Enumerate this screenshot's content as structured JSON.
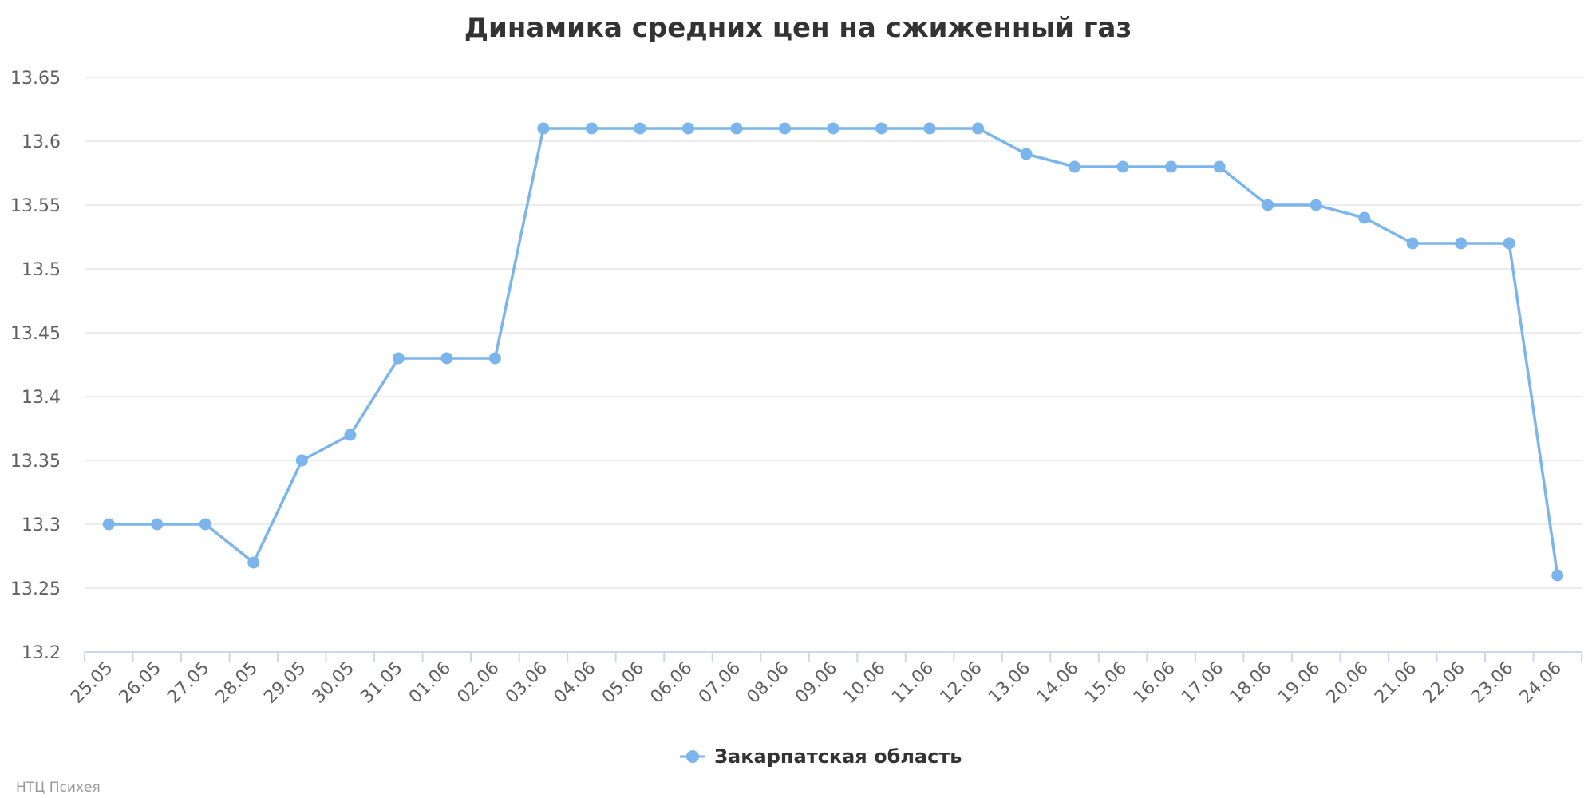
{
  "chart_data": {
    "type": "line",
    "title": "Динамика средних цен на сжиженный газ",
    "categories": [
      "25.05",
      "26.05",
      "27.05",
      "28.05",
      "29.05",
      "30.05",
      "31.05",
      "01.06",
      "02.06",
      "03.06",
      "04.06",
      "05.06",
      "06.06",
      "07.06",
      "08.06",
      "09.06",
      "10.06",
      "11.06",
      "12.06",
      "13.06",
      "14.06",
      "15.06",
      "16.06",
      "17.06",
      "18.06",
      "19.06",
      "20.06",
      "21.06",
      "22.06",
      "23.06",
      "24.06"
    ],
    "series": [
      {
        "name": "Закарпатская область",
        "color": "#7cb5ec",
        "values": [
          13.3,
          13.3,
          13.3,
          13.27,
          13.35,
          13.37,
          13.43,
          13.43,
          13.43,
          13.61,
          13.61,
          13.61,
          13.61,
          13.61,
          13.61,
          13.61,
          13.61,
          13.61,
          13.61,
          13.59,
          13.58,
          13.58,
          13.58,
          13.58,
          13.55,
          13.55,
          13.54,
          13.52,
          13.52,
          13.52,
          13.26
        ]
      }
    ],
    "yticks": [
      "13.2",
      "13.25",
      "13.3",
      "13.35",
      "13.4",
      "13.45",
      "13.5",
      "13.55",
      "13.6",
      "13.65"
    ],
    "ylim": [
      13.2,
      13.65
    ],
    "xlabel": "",
    "ylabel": "",
    "grid": true,
    "legend_position": "bottom-center"
  },
  "credits": "НТЦ Психея",
  "colors": {
    "grid": "#e6e6e6",
    "axis": "#ccd6eb",
    "line": "#7cb5ec"
  }
}
